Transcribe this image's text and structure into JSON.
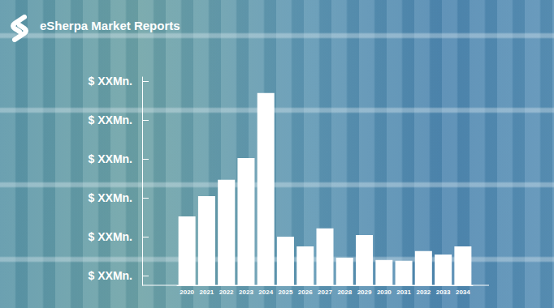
{
  "chart_data": {
    "type": "bar",
    "title": "eSherpa Market Reports",
    "categories": [
      "2020",
      "2021",
      "2022",
      "2023",
      "2024",
      "2025",
      "2026",
      "2027",
      "2028",
      "2029",
      "2030",
      "2031",
      "2032",
      "2033",
      "2034"
    ],
    "values": [
      1.77,
      2.29,
      2.71,
      3.27,
      4.94,
      1.25,
      1.0,
      1.46,
      0.71,
      1.29,
      0.65,
      0.63,
      0.88,
      0.79,
      1.0
    ],
    "color": "#ffffff",
    "ylim": [
      0,
      5.35
    ],
    "yticks": [
      {
        "value": 0.25,
        "label": "$ XXMn."
      },
      {
        "value": 1.25,
        "label": "$ XXMn."
      },
      {
        "value": 2.25,
        "label": "$ XXMn."
      },
      {
        "value": 3.25,
        "label": "$ XXMn."
      },
      {
        "value": 4.25,
        "label": "$ XXMn."
      },
      {
        "value": 5.25,
        "label": "$ XXMn."
      }
    ],
    "grid": false
  }
}
